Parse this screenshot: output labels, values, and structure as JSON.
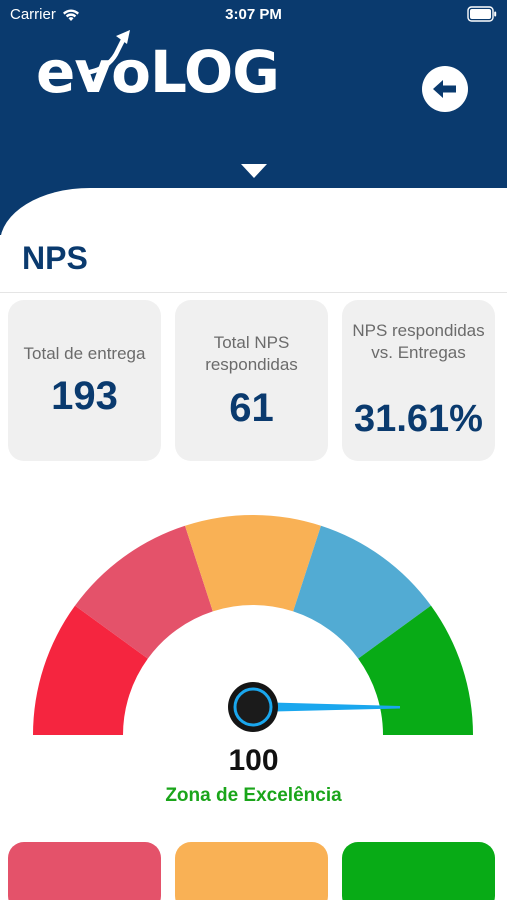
{
  "status_bar": {
    "carrier": "Carrier",
    "time": "3:07 PM"
  },
  "header": {
    "logo_text": "evoLOG"
  },
  "page": {
    "title": "NPS"
  },
  "stats": [
    {
      "label": "Total de entrega",
      "value": "193"
    },
    {
      "label": "Total NPS respondidas",
      "value": "61"
    },
    {
      "label": "NPS respondidas vs. Entregas",
      "value": "31.61%"
    }
  ],
  "gauge": {
    "score": "100",
    "zone_label": "Zona de Excelência",
    "segment_colors": [
      "#f5253f",
      "#e4526a",
      "#f9b155",
      "#52abd3",
      "#08ab16"
    ],
    "needle_color": "#1aa7ee",
    "zone_color": "#1aa51a"
  },
  "bottom_cards": [
    {
      "color": "#e4526a"
    },
    {
      "color": "#f9b155"
    },
    {
      "color": "#08ab16"
    }
  ],
  "colors": {
    "header_bg": "#0a3a6e",
    "title": "#0a3a6e"
  }
}
